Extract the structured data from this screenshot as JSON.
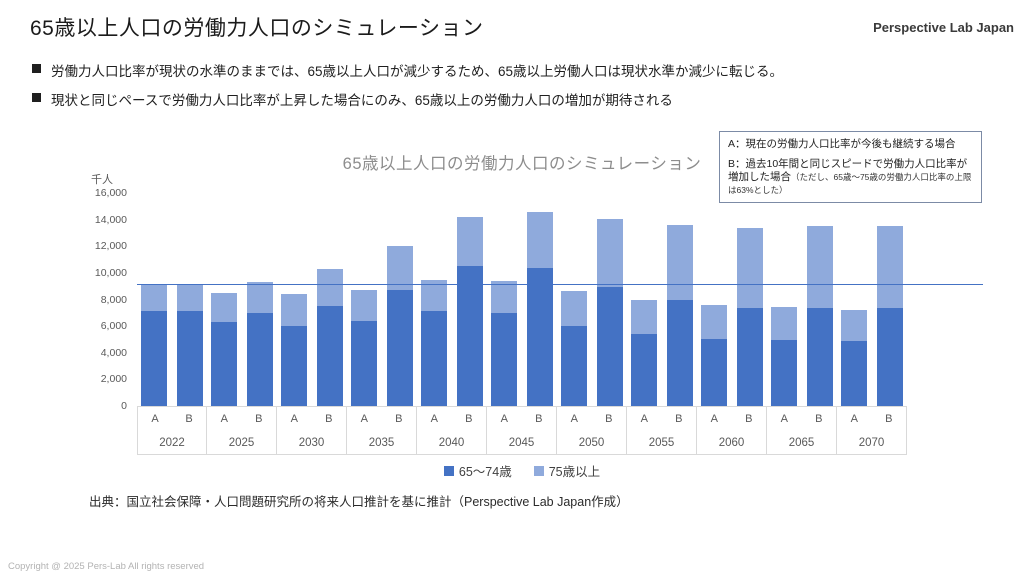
{
  "slide": {
    "title": "65歳以上人口の労働力人口のシミュレーション",
    "brand": "Perspective Lab Japan",
    "bullets": [
      "労働力人口比率が現状の水準のままでは、65歳以上人口が減少するため、65歳以上労働人口は現状水準か減少に転じる。",
      "現状と同じペースで労働力人口比率が上昇した場合にのみ、65歳以上の労働力人口の増加が期待される"
    ],
    "source": "出典：国立社会保障・人口問題研究所の将来人口推計を基に推計（Perspective Lab Japan作成）",
    "copyright": "Copyright @ 2025 Pers-Lab All rights reserved"
  },
  "annotation": {
    "line_a": "A：現在の労働力人口比率が今後も継続する場合",
    "line_b": "B：過去10年間と同じスピードで労働力人口比率が増加した場合",
    "line_b_note": "（ただし、65歳〜75歳の労働力人口比率の上限は63%とした）"
  },
  "chart_data": {
    "type": "bar",
    "stacked": true,
    "title": "65歳以上人口の労働力人口のシミュレーション",
    "unit_label": "千人",
    "ylabel": "千人",
    "ylim": [
      0,
      16000
    ],
    "ytick_step": 2000,
    "grid": false,
    "legend_position": "bottom",
    "reference_line": {
      "value": 9200,
      "color": "#4472C4"
    },
    "colors": {
      "age65_74": "#4472C4",
      "age75plus": "#8FAADC"
    },
    "scenarios": [
      "A",
      "B"
    ],
    "years": [
      "2022",
      "2025",
      "2030",
      "2035",
      "2040",
      "2045",
      "2050",
      "2055",
      "2060",
      "2065",
      "2070"
    ],
    "series": [
      {
        "name": "65〜74歳",
        "scenario": "A",
        "color": "#4472C4",
        "values": [
          7150,
          6300,
          6000,
          6400,
          7100,
          7000,
          6000,
          5400,
          5000,
          4950,
          4900
        ]
      },
      {
        "name": "75歳以上",
        "scenario": "A",
        "color": "#8FAADC",
        "values": [
          2050,
          2200,
          2400,
          2300,
          2400,
          2400,
          2650,
          2600,
          2600,
          2500,
          2350
        ]
      },
      {
        "name": "65〜74歳",
        "scenario": "B",
        "color": "#4472C4",
        "values": [
          7150,
          7000,
          7500,
          8700,
          10500,
          10350,
          8950,
          7950,
          7400,
          7400,
          7350
        ]
      },
      {
        "name": "75歳以上",
        "scenario": "B",
        "color": "#8FAADC",
        "values": [
          2050,
          2300,
          2800,
          3300,
          3700,
          4250,
          5100,
          5650,
          6000,
          6100,
          6150
        ]
      }
    ],
    "legend": [
      {
        "label": "65〜74歳",
        "color": "#4472C4"
      },
      {
        "label": "75歳以上",
        "color": "#8FAADC"
      }
    ]
  }
}
